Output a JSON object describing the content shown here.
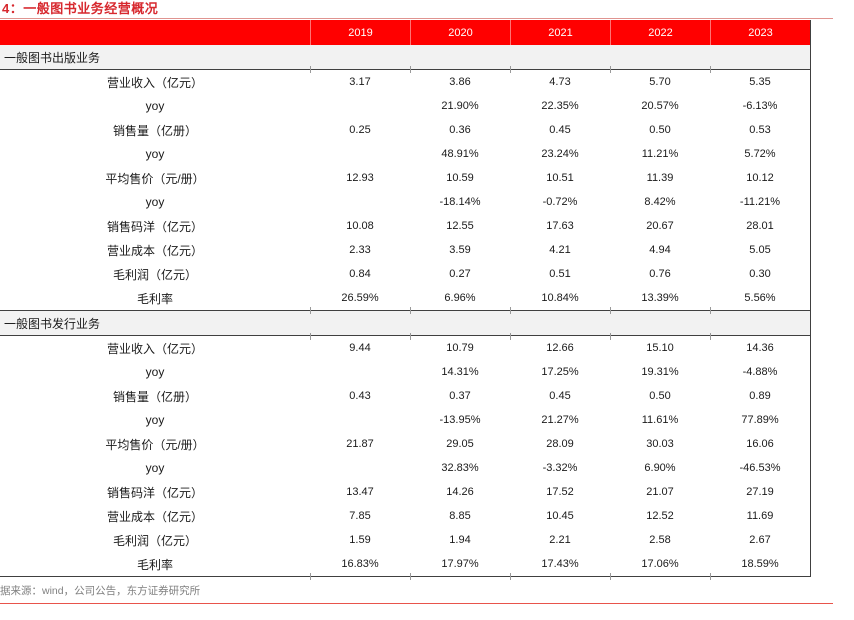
{
  "title": "4：一般图书业务经营概况",
  "source_note": "据来源：wind，公司公告，东方证券研究所",
  "colors": {
    "header_bg": "#ff0000",
    "title_red": "#d7282e",
    "section_bg": "#f2f2f2",
    "rule_top": "#e09490",
    "rule_bottom": "#e8544b",
    "border_dark": "#404040",
    "source_gray": "#808080"
  },
  "table": {
    "year_headers": [
      "2019",
      "2020",
      "2021",
      "2022",
      "2023"
    ],
    "sections": [
      {
        "name": "一般图书出版业务",
        "rows": [
          {
            "label": "营业收入（亿元）",
            "values": [
              "3.17",
              "3.86",
              "4.73",
              "5.70",
              "5.35"
            ]
          },
          {
            "label": "yoy",
            "values": [
              "",
              "21.90%",
              "22.35%",
              "20.57%",
              "-6.13%"
            ]
          },
          {
            "label": "销售量（亿册）",
            "values": [
              "0.25",
              "0.36",
              "0.45",
              "0.50",
              "0.53"
            ]
          },
          {
            "label": "yoy",
            "values": [
              "",
              "48.91%",
              "23.24%",
              "11.21%",
              "5.72%"
            ]
          },
          {
            "label": "平均售价（元/册）",
            "values": [
              "12.93",
              "10.59",
              "10.51",
              "11.39",
              "10.12"
            ]
          },
          {
            "label": "yoy",
            "values": [
              "",
              "-18.14%",
              "-0.72%",
              "8.42%",
              "-11.21%"
            ]
          },
          {
            "label": "销售码洋（亿元）",
            "values": [
              "10.08",
              "12.55",
              "17.63",
              "20.67",
              "28.01"
            ]
          },
          {
            "label": "营业成本（亿元）",
            "values": [
              "2.33",
              "3.59",
              "4.21",
              "4.94",
              "5.05"
            ]
          },
          {
            "label": "毛利润（亿元）",
            "values": [
              "0.84",
              "0.27",
              "0.51",
              "0.76",
              "0.30"
            ]
          },
          {
            "label": "毛利率",
            "values": [
              "26.59%",
              "6.96%",
              "10.84%",
              "13.39%",
              "5.56%"
            ]
          }
        ]
      },
      {
        "name": "一般图书发行业务",
        "rows": [
          {
            "label": "营业收入（亿元）",
            "values": [
              "9.44",
              "10.79",
              "12.66",
              "15.10",
              "14.36"
            ]
          },
          {
            "label": "yoy",
            "values": [
              "",
              "14.31%",
              "17.25%",
              "19.31%",
              "-4.88%"
            ]
          },
          {
            "label": "销售量（亿册）",
            "values": [
              "0.43",
              "0.37",
              "0.45",
              "0.50",
              "0.89"
            ]
          },
          {
            "label": "yoy",
            "values": [
              "",
              "-13.95%",
              "21.27%",
              "11.61%",
              "77.89%"
            ]
          },
          {
            "label": "平均售价（元/册）",
            "values": [
              "21.87",
              "29.05",
              "28.09",
              "30.03",
              "16.06"
            ]
          },
          {
            "label": "yoy",
            "values": [
              "",
              "32.83%",
              "-3.32%",
              "6.90%",
              "-46.53%"
            ]
          },
          {
            "label": "销售码洋（亿元）",
            "values": [
              "13.47",
              "14.26",
              "17.52",
              "21.07",
              "27.19"
            ]
          },
          {
            "label": "营业成本（亿元）",
            "values": [
              "7.85",
              "8.85",
              "10.45",
              "12.52",
              "11.69"
            ]
          },
          {
            "label": "毛利润（亿元）",
            "values": [
              "1.59",
              "1.94",
              "2.21",
              "2.58",
              "2.67"
            ]
          },
          {
            "label": "毛利率",
            "values": [
              "16.83%",
              "17.97%",
              "17.43%",
              "17.06%",
              "18.59%"
            ]
          }
        ]
      }
    ]
  }
}
